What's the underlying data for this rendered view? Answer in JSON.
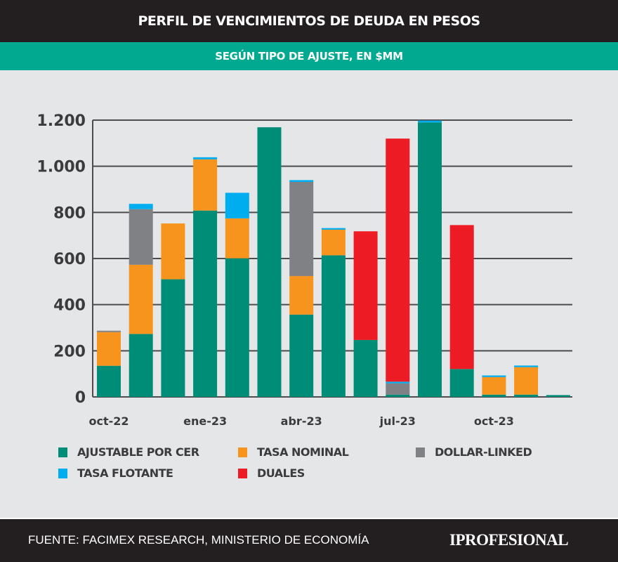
{
  "header": {
    "title": "PERFIL DE VENCIMIENTOS DE DEUDA EN PESOS",
    "subtitle": "SEGÚN TIPO DE AJUSTE, EN $MM"
  },
  "footer": {
    "source": "FUENTE:  FACIMEX RESEARCH, MINISTERIO DE ECONOMÍA",
    "logo": "IPROFESIONAL"
  },
  "chart_data": {
    "type": "bar",
    "stacked": true,
    "categories": [
      "oct-22",
      "nov-22",
      "dic-22",
      "ene-23",
      "feb-23",
      "mar-23",
      "abr-23",
      "may-23",
      "jun-23",
      "jul-23",
      "ago-23",
      "sep-23",
      "oct-23",
      "nov-23",
      "dic-23"
    ],
    "xtick_labels": [
      "oct-22",
      "ene-23",
      "abr-23",
      "jul-23",
      "oct-23"
    ],
    "xtick_categories": [
      0,
      3,
      6,
      9,
      12
    ],
    "ylim": [
      0,
      1200
    ],
    "yticks": [
      0,
      200,
      400,
      600,
      800,
      1000,
      1200
    ],
    "ytick_labels": [
      "0",
      "200",
      "400",
      "600",
      "800",
      "1.000",
      "1.200"
    ],
    "grid": true,
    "legend": "bottom",
    "series": [
      {
        "name": "AJUSTABLE POR CER",
        "color": "#008d78",
        "values": [
          135,
          273,
          510,
          808,
          601,
          1169,
          357,
          614,
          247,
          10,
          1190,
          121,
          10,
          10,
          8
        ]
      },
      {
        "name": "TASA NOMINAL",
        "color": "#f7941d",
        "values": [
          146,
          300,
          242,
          222,
          173,
          0,
          167,
          111,
          0,
          0,
          0,
          0,
          76,
          119,
          0
        ]
      },
      {
        "name": "DOLLAR-LINKED",
        "color": "#808184",
        "values": [
          6,
          241,
          0,
          0,
          0,
          0,
          408,
          0,
          0,
          49,
          0,
          0,
          0,
          0,
          0
        ]
      },
      {
        "name": "TASA FLOTANTE",
        "color": "#00aeef",
        "values": [
          0,
          23,
          0,
          9,
          111,
          0,
          8,
          7,
          0,
          7,
          8,
          0,
          7,
          7,
          0
        ]
      },
      {
        "name": "DUALES",
        "color": "#ed1c24",
        "values": [
          0,
          0,
          0,
          0,
          0,
          0,
          0,
          0,
          471,
          1054,
          0,
          624,
          0,
          0,
          0
        ]
      }
    ]
  }
}
